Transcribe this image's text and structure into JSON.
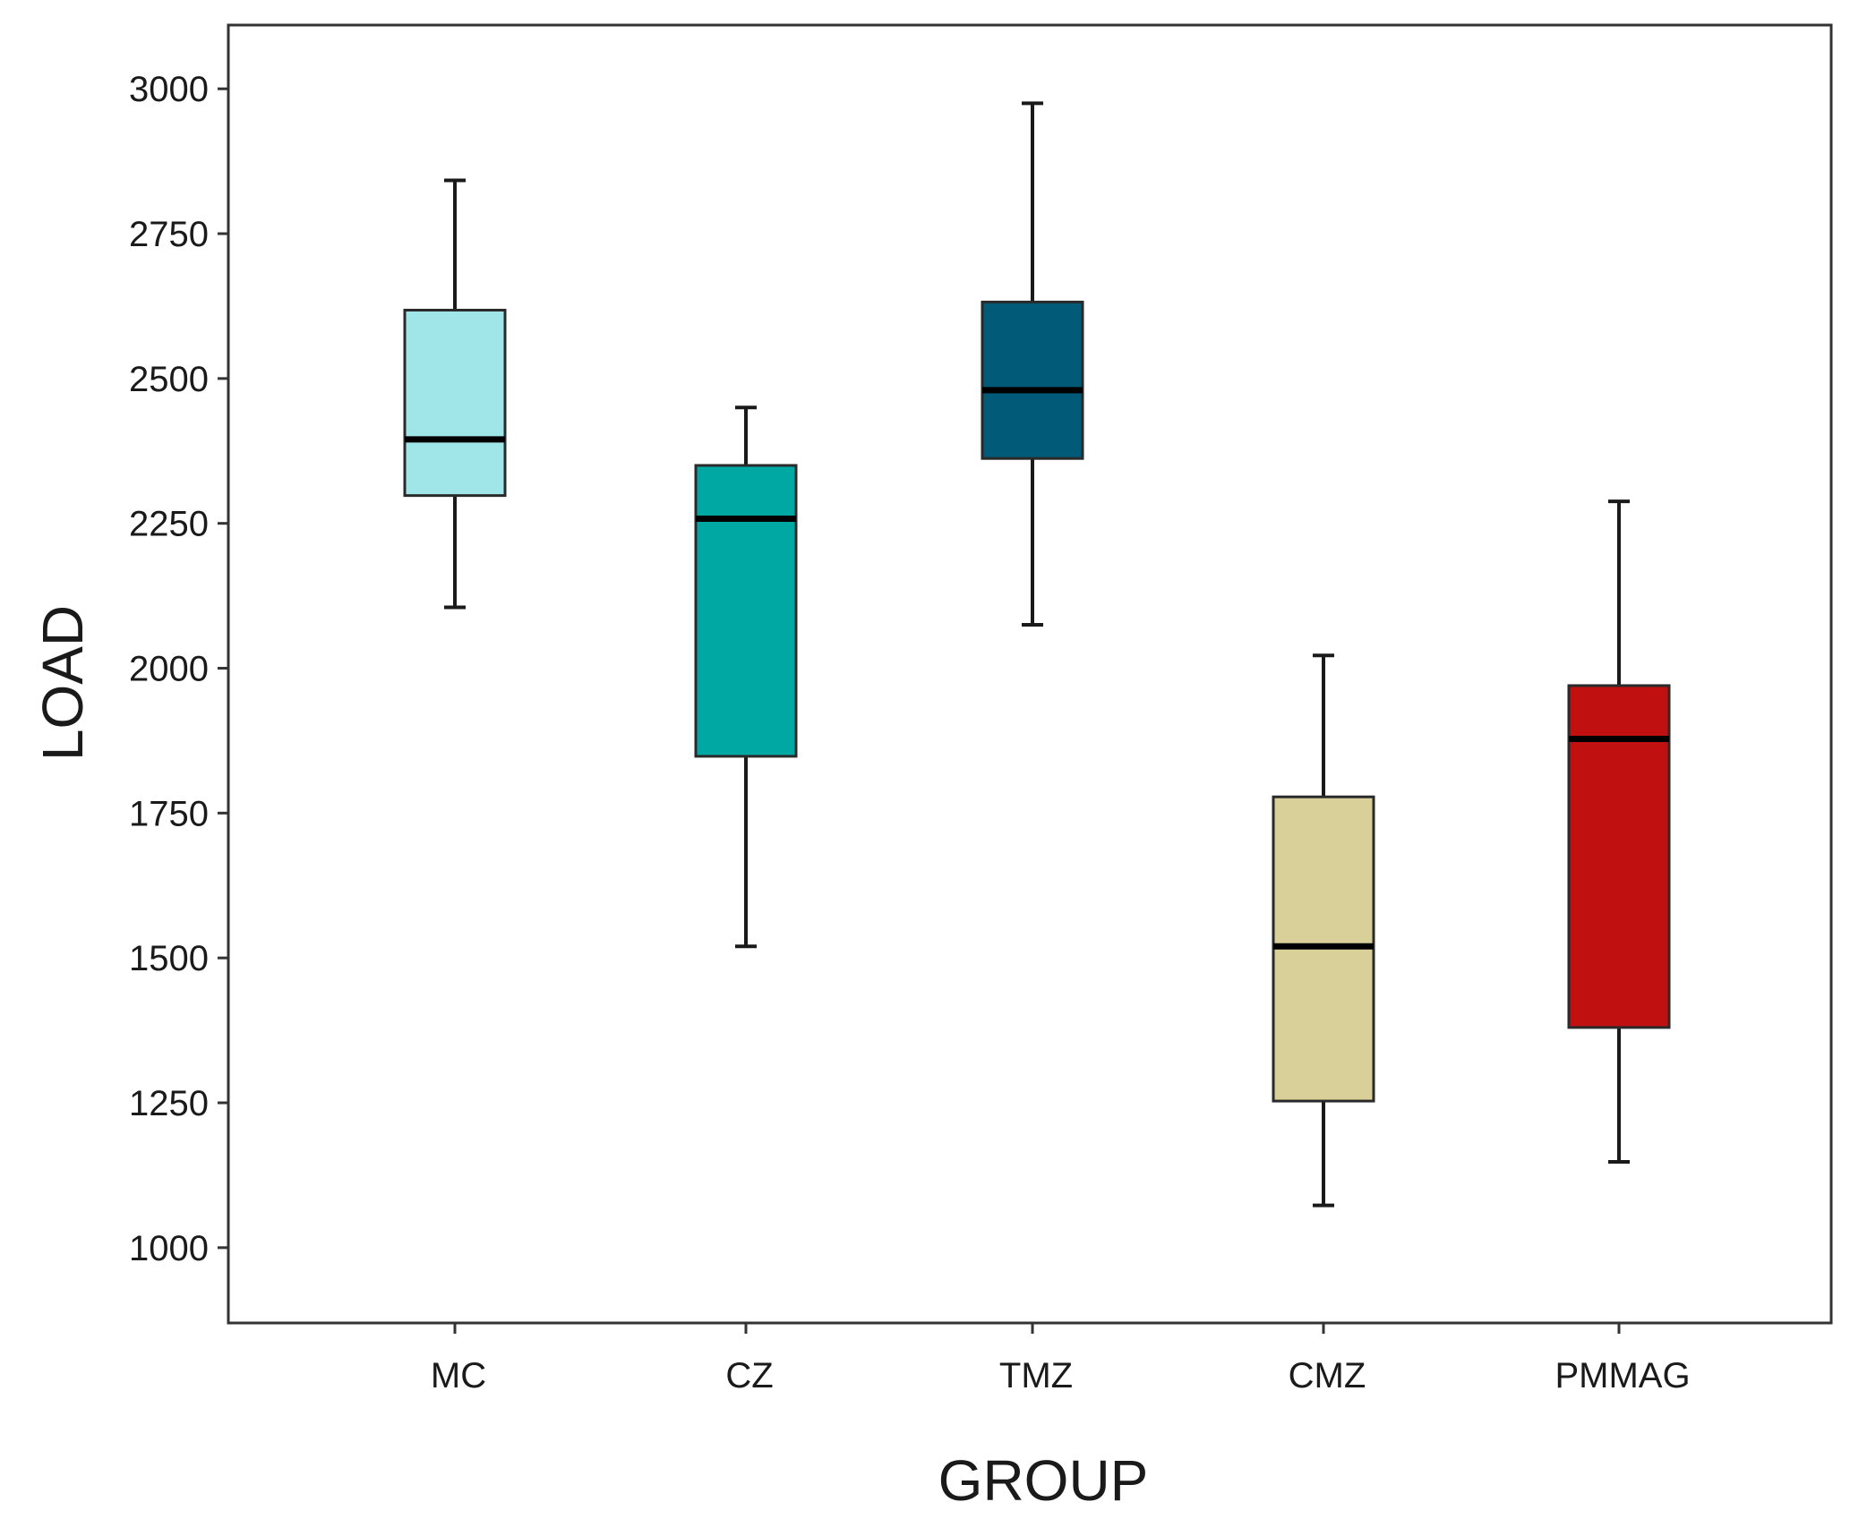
{
  "chart_data": {
    "type": "boxplot",
    "title": "",
    "xlabel": "GROUP",
    "ylabel": "LOAD",
    "ylim": [
      870,
      3110
    ],
    "yticks": [
      1000,
      1250,
      1500,
      1750,
      2000,
      2250,
      2500,
      2750,
      3000
    ],
    "grid": false,
    "legend": "none",
    "categories": [
      "MC",
      "CZ",
      "TMZ",
      "CMZ",
      "PMMAG"
    ],
    "series": [
      {
        "name": "MC",
        "min": 2105,
        "q1": 2298,
        "median": 2395,
        "q3": 2618,
        "max": 2842,
        "color": "#a0e6e8"
      },
      {
        "name": "CZ",
        "min": 1520,
        "q1": 1848,
        "median": 2258,
        "q3": 2350,
        "max": 2450,
        "color": "#00a8a4"
      },
      {
        "name": "TMZ",
        "min": 2075,
        "q1": 2362,
        "median": 2480,
        "q3": 2632,
        "max": 2975,
        "color": "#005a78"
      },
      {
        "name": "CMZ",
        "min": 1073,
        "q1": 1253,
        "median": 1520,
        "q3": 1778,
        "max": 2022,
        "color": "#d8d098"
      },
      {
        "name": "PMMAG",
        "min": 1148,
        "q1": 1380,
        "median": 1878,
        "q3": 1970,
        "max": 2288,
        "color": "#c01010"
      }
    ]
  }
}
